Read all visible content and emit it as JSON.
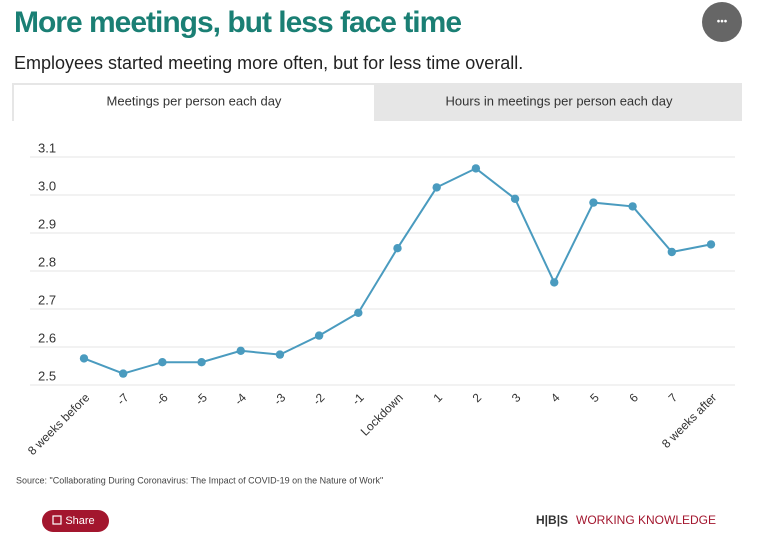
{
  "chart_data": {
    "type": "line",
    "title": "More meetings, but less face time",
    "subtitle": "Employees started meeting more often, but for less time overall.",
    "tabs": [
      "Meetings per person each day",
      "Hours in meetings per person each day"
    ],
    "categories": [
      "8 weeks before",
      "-7",
      "-6",
      "-5",
      "-4",
      "-3",
      "-2",
      "-1",
      "Lockdown",
      "1",
      "2",
      "3",
      "4",
      "5",
      "6",
      "7",
      "8 weeks after"
    ],
    "series": [
      {
        "name": "Meetings per person each day",
        "color": "#4a9bbf",
        "values": [
          2.57,
          2.53,
          2.56,
          2.56,
          2.59,
          2.58,
          2.63,
          2.69,
          2.86,
          3.02,
          3.07,
          2.99,
          2.77,
          2.98,
          2.97,
          2.85,
          2.87
        ]
      }
    ],
    "ylim": [
      2.5,
      3.1
    ],
    "yticks": [
      2.5,
      2.6,
      2.7,
      2.8,
      2.9,
      {
        "value": 3,
        "label": "3.0"
      },
      3.1
    ],
    "grid": true,
    "source": "Source: \"Collaborating During Coronavirus: The Impact of COVID-19 on the Nature of Work\""
  },
  "share_label": "Share",
  "brand_mark": "H|B|S",
  "brand_name": "WORKING KNOWLEDGE",
  "menu_label": "•••"
}
